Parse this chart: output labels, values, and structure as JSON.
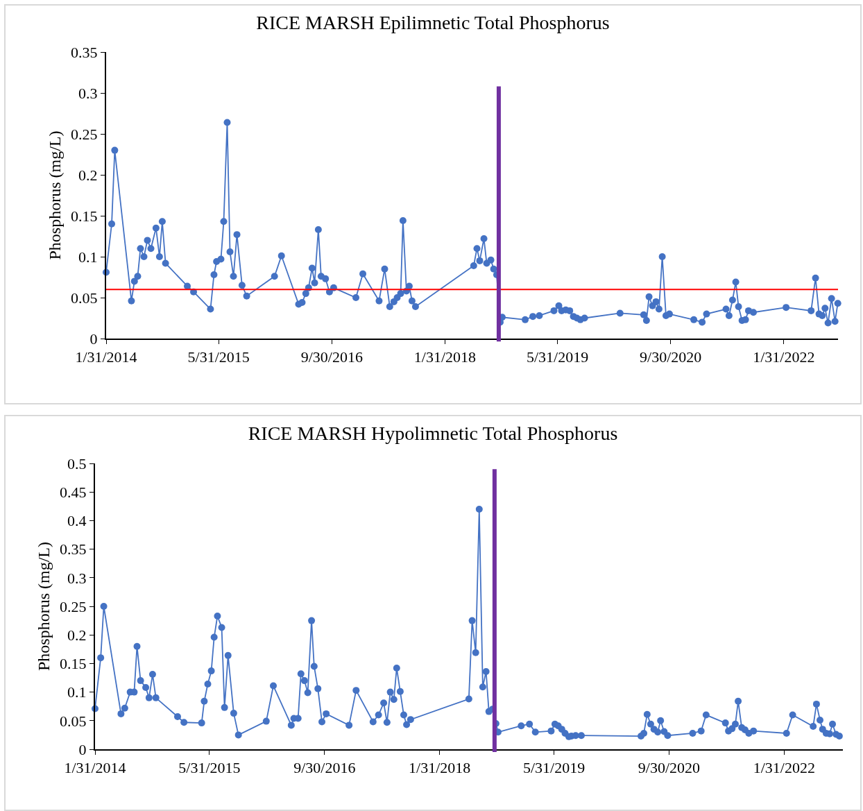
{
  "chart_data": [
    {
      "type": "line",
      "title": "RICE MARSH Epilimnetic Total Phosphorus",
      "ylabel": "Phosphorus (mg/L)",
      "marker": "circle",
      "x": [
        "2014-01-31",
        "2014-02-24",
        "2014-03-09",
        "2014-05-20",
        "2014-06-02",
        "2014-06-16",
        "2014-06-28",
        "2014-07-13",
        "2014-07-28",
        "2014-08-12",
        "2014-09-03",
        "2014-09-18",
        "2014-09-30",
        "2014-10-14",
        "2015-01-16",
        "2015-02-12",
        "2015-04-26",
        "2015-05-11",
        "2015-05-22",
        "2015-06-10",
        "2015-06-22",
        "2015-07-07",
        "2015-07-19",
        "2015-08-03",
        "2015-08-18",
        "2015-09-09",
        "2015-09-29",
        "2016-01-27",
        "2016-02-26",
        "2016-05-10",
        "2016-05-25",
        "2016-06-10",
        "2016-06-22",
        "2016-07-07",
        "2016-07-18",
        "2016-08-03",
        "2016-08-15",
        "2016-09-03",
        "2016-09-20",
        "2016-10-08",
        "2017-01-12",
        "2017-02-11",
        "2017-04-22",
        "2017-05-16",
        "2017-06-07",
        "2017-06-25",
        "2017-07-09",
        "2017-07-24",
        "2017-08-03",
        "2017-08-18",
        "2017-08-30",
        "2017-09-11",
        "2017-09-26",
        "2018-06-04",
        "2018-06-18",
        "2018-06-30",
        "2018-07-18",
        "2018-07-30",
        "2018-08-17",
        "2018-08-29",
        "2018-09-11",
        "2018-09-26",
        "2018-10-05",
        "2019-01-12",
        "2019-02-14",
        "2019-03-14",
        "2019-05-16",
        "2019-06-06",
        "2019-06-18",
        "2019-07-06",
        "2019-07-23",
        "2019-08-08",
        "2019-08-23",
        "2019-09-07",
        "2019-09-25",
        "2020-02-25",
        "2020-06-06",
        "2020-06-18",
        "2020-06-29",
        "2020-07-14",
        "2020-07-29",
        "2020-08-11",
        "2020-08-25",
        "2020-09-10",
        "2020-09-25",
        "2021-01-08",
        "2021-02-13",
        "2021-03-04",
        "2021-05-27",
        "2021-06-09",
        "2021-06-24",
        "2021-07-08",
        "2021-07-20",
        "2021-08-04",
        "2021-08-19",
        "2021-09-01",
        "2021-09-22",
        "2022-02-10",
        "2022-05-29",
        "2022-06-17",
        "2022-07-02",
        "2022-07-16",
        "2022-07-28",
        "2022-08-10",
        "2022-08-25",
        "2022-09-09",
        "2022-09-21"
      ],
      "series": [
        {
          "color": "#4472c4",
          "values": [
            0.081,
            0.14,
            0.23,
            0.046,
            0.07,
            0.076,
            0.11,
            0.1,
            0.12,
            0.11,
            0.135,
            0.1,
            0.143,
            0.092,
            0.064,
            0.057,
            0.036,
            0.078,
            0.094,
            0.097,
            0.143,
            0.264,
            0.106,
            0.076,
            0.127,
            0.065,
            0.052,
            0.076,
            0.101,
            0.042,
            0.044,
            0.055,
            0.062,
            0.086,
            0.068,
            0.133,
            0.076,
            0.073,
            0.057,
            0.062,
            0.05,
            0.079,
            0.046,
            0.085,
            0.039,
            0.045,
            0.05,
            0.055,
            0.144,
            0.058,
            0.064,
            0.046,
            0.039,
            0.089,
            0.11,
            0.095,
            0.122,
            0.092,
            0.096,
            0.085,
            0.078,
            0.02,
            0.026,
            0.023,
            0.027,
            0.028,
            0.034,
            0.04,
            0.034,
            0.035,
            0.034,
            0.027,
            0.025,
            0.023,
            0.025,
            0.031,
            0.029,
            0.022,
            0.051,
            0.04,
            0.045,
            0.036,
            0.1,
            0.028,
            0.03,
            0.023,
            0.02,
            0.03,
            0.036,
            0.028,
            0.047,
            0.069,
            0.039,
            0.022,
            0.023,
            0.034,
            0.032,
            0.038,
            0.034,
            0.074,
            0.03,
            0.028,
            0.037,
            0.019,
            0.049,
            0.021,
            0.043
          ]
        }
      ],
      "xlim": [
        "2014-01-31",
        "2022-09-22"
      ],
      "xticks": [
        {
          "value": "2014-01-31",
          "label": "1/31/2014"
        },
        {
          "value": "2015-05-31",
          "label": "5/31/2015"
        },
        {
          "value": "2016-09-30",
          "label": "9/30/2016"
        },
        {
          "value": "2018-01-31",
          "label": "1/31/2018"
        },
        {
          "value": "2019-05-31",
          "label": "5/31/2019"
        },
        {
          "value": "2020-09-30",
          "label": "9/30/2020"
        },
        {
          "value": "2022-01-31",
          "label": "1/31/2022"
        }
      ],
      "ylim": [
        0,
        0.35
      ],
      "yticks": [
        0,
        0.05,
        0.1,
        0.15,
        0.2,
        0.25,
        0.3,
        0.35
      ],
      "ref_lines": [
        {
          "axis": "y",
          "value": 0.06,
          "color": "#ff0000"
        },
        {
          "axis": "x",
          "value": "2018-09-20",
          "color": "#7030a0"
        }
      ]
    },
    {
      "type": "line",
      "title": "RICE MARSH Hypolimnetic Total Phosphorus",
      "ylabel": "Phosphorus (mg/L)",
      "marker": "circle",
      "x": [
        "2014-01-31",
        "2014-02-24",
        "2014-03-09",
        "2014-05-21",
        "2014-06-06",
        "2014-06-29",
        "2014-07-16",
        "2014-07-28",
        "2014-08-12",
        "2014-09-03",
        "2014-09-17",
        "2014-10-02",
        "2014-10-16",
        "2015-01-16",
        "2015-02-12",
        "2015-04-28",
        "2015-05-09",
        "2015-05-24",
        "2015-06-08",
        "2015-06-20",
        "2015-07-04",
        "2015-07-22",
        "2015-08-03",
        "2015-08-18",
        "2015-09-11",
        "2015-10-01",
        "2016-01-27",
        "2016-02-26",
        "2016-05-12",
        "2016-05-23",
        "2016-06-10",
        "2016-06-22",
        "2016-07-07",
        "2016-07-21",
        "2016-08-06",
        "2016-08-17",
        "2016-09-02",
        "2016-09-19",
        "2016-10-07",
        "2017-01-12",
        "2017-02-11",
        "2017-04-24",
        "2017-05-17",
        "2017-06-08",
        "2017-06-22",
        "2017-07-06",
        "2017-07-21",
        "2017-08-02",
        "2017-08-17",
        "2017-09-01",
        "2017-09-13",
        "2017-09-30",
        "2018-06-04",
        "2018-06-18",
        "2018-07-03",
        "2018-07-18",
        "2018-08-02",
        "2018-08-16",
        "2018-08-28",
        "2018-09-12",
        "2018-09-27",
        "2018-10-06",
        "2019-01-12",
        "2019-02-16",
        "2019-03-13",
        "2019-05-19",
        "2019-06-04",
        "2019-06-18",
        "2019-07-03",
        "2019-07-17",
        "2019-08-02",
        "2019-08-13",
        "2019-08-31",
        "2019-09-24",
        "2020-06-03",
        "2020-06-15",
        "2020-06-29",
        "2020-07-14",
        "2020-07-28",
        "2020-08-13",
        "2020-08-25",
        "2020-09-09",
        "2020-09-24",
        "2021-01-08",
        "2021-02-13",
        "2021-03-06",
        "2021-05-27",
        "2021-06-09",
        "2021-06-24",
        "2021-07-08",
        "2021-07-20",
        "2021-08-04",
        "2021-08-18",
        "2021-09-03",
        "2021-09-23",
        "2022-02-10",
        "2022-03-08",
        "2022-06-03",
        "2022-06-17",
        "2022-07-02",
        "2022-07-13",
        "2022-07-28",
        "2022-08-12",
        "2022-08-24",
        "2022-09-08",
        "2022-09-22"
      ],
      "series": [
        {
          "color": "#4472c4",
          "values": [
            0.071,
            0.16,
            0.25,
            0.062,
            0.072,
            0.1,
            0.1,
            0.18,
            0.12,
            0.108,
            0.09,
            0.131,
            0.09,
            0.057,
            0.047,
            0.046,
            0.084,
            0.114,
            0.137,
            0.196,
            0.233,
            0.213,
            0.073,
            0.164,
            0.063,
            0.025,
            0.049,
            0.111,
            0.042,
            0.054,
            0.054,
            0.132,
            0.12,
            0.099,
            0.225,
            0.145,
            0.106,
            0.048,
            0.062,
            0.042,
            0.103,
            0.048,
            0.06,
            0.081,
            0.047,
            0.1,
            0.087,
            0.142,
            0.101,
            0.06,
            0.043,
            0.052,
            0.088,
            0.225,
            0.169,
            0.42,
            0.109,
            0.136,
            0.066,
            0.07,
            0.045,
            0.03,
            0.041,
            0.044,
            0.03,
            0.032,
            0.044,
            0.041,
            0.035,
            0.028,
            0.022,
            0.023,
            0.024,
            0.024,
            0.023,
            0.028,
            0.061,
            0.044,
            0.035,
            0.03,
            0.05,
            0.031,
            0.024,
            0.028,
            0.032,
            0.06,
            0.046,
            0.032,
            0.036,
            0.044,
            0.084,
            0.038,
            0.034,
            0.028,
            0.032,
            0.028,
            0.06,
            0.04,
            0.079,
            0.051,
            0.035,
            0.028,
            0.027,
            0.044,
            0.026,
            0.023
          ]
        }
      ],
      "xlim": [
        "2014-01-31",
        "2022-10-07"
      ],
      "xticks": [
        {
          "value": "2014-01-31",
          "label": "1/31/2014"
        },
        {
          "value": "2015-05-31",
          "label": "5/31/2015"
        },
        {
          "value": "2016-09-30",
          "label": "9/30/2016"
        },
        {
          "value": "2018-01-31",
          "label": "1/31/2018"
        },
        {
          "value": "2019-05-31",
          "label": "5/31/2019"
        },
        {
          "value": "2020-09-30",
          "label": "9/30/2020"
        },
        {
          "value": "2022-01-31",
          "label": "1/31/2022"
        }
      ],
      "ylim": [
        0,
        0.5
      ],
      "yticks": [
        0,
        0.05,
        0.1,
        0.15,
        0.2,
        0.25,
        0.3,
        0.35,
        0.4,
        0.45,
        0.5
      ],
      "ref_lines": [
        {
          "axis": "x",
          "value": "2018-09-21",
          "color": "#7030a0"
        }
      ]
    }
  ]
}
